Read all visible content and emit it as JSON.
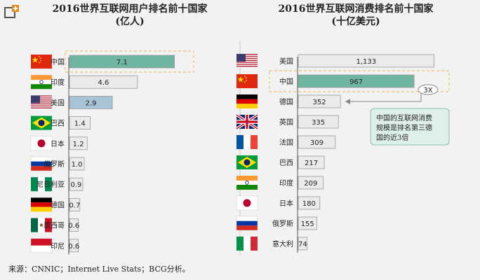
{
  "colors": {
    "bar_default": "#ebebeb",
    "bar_highlight_china": "#6fb5a2",
    "bar_highlight_usa": "#a7c3d5",
    "callout_bg": "#dff0ea",
    "accent": "#e98a1c",
    "frame": "#f0c070"
  },
  "icons": {
    "logo": "orange-plus-logo-icon",
    "flags": [
      "china-flag-icon",
      "india-flag-icon",
      "usa-flag-icon",
      "brazil-flag-icon",
      "japan-flag-icon",
      "russia-flag-icon",
      "nigeria-flag-icon",
      "germany-flag-icon",
      "mexico-flag-icon",
      "indonesia-flag-icon",
      "uk-flag-icon",
      "france-flag-icon",
      "italy-flag-icon"
    ]
  },
  "source": "来源：CNNIC；Internet Live Stats；BCG分析。",
  "chart_data": [
    {
      "type": "bar",
      "title": "2016世界互联网用户排名前十国家",
      "subtitle": "(亿人)",
      "categories": [
        "中国",
        "印度",
        "美国",
        "巴西",
        "日本",
        "俄罗斯",
        "尼日利亚",
        "德国",
        "墨西哥",
        "印尼"
      ],
      "values": [
        7.1,
        4.6,
        2.9,
        1.4,
        1.2,
        1.0,
        0.9,
        0.7,
        0.6,
        0.6
      ],
      "labels": [
        "7.1",
        "4.6",
        "2.9",
        "1.4",
        "1.2",
        "1.0",
        "0.9",
        "0.7",
        "0.6",
        "0.6"
      ],
      "highlight": {
        "中国": "#6fb5a2",
        "美国": "#a7c3d5"
      },
      "orientation": "horizontal",
      "xlim": [
        0,
        7.5
      ]
    },
    {
      "type": "bar",
      "title": "2016世界互联网消费排名前十国家",
      "subtitle": "(十亿美元)",
      "categories": [
        "美国",
        "中国",
        "德国",
        "英国",
        "法国",
        "巴西",
        "印度",
        "日本",
        "俄罗斯",
        "意大利"
      ],
      "values": [
        1133,
        967,
        352,
        335,
        309,
        217,
        209,
        180,
        155,
        74
      ],
      "labels": [
        "1,133",
        "967",
        "352",
        "335",
        "309",
        "217",
        "209",
        "180",
        "155",
        "74"
      ],
      "highlight": {
        "中国": "#6fb5a2"
      },
      "orientation": "horizontal",
      "xlim": [
        0,
        1200
      ],
      "annotation": {
        "marker": "3X",
        "text": "中国的互联网消费规模是排名第三德国的近3倍"
      }
    }
  ]
}
